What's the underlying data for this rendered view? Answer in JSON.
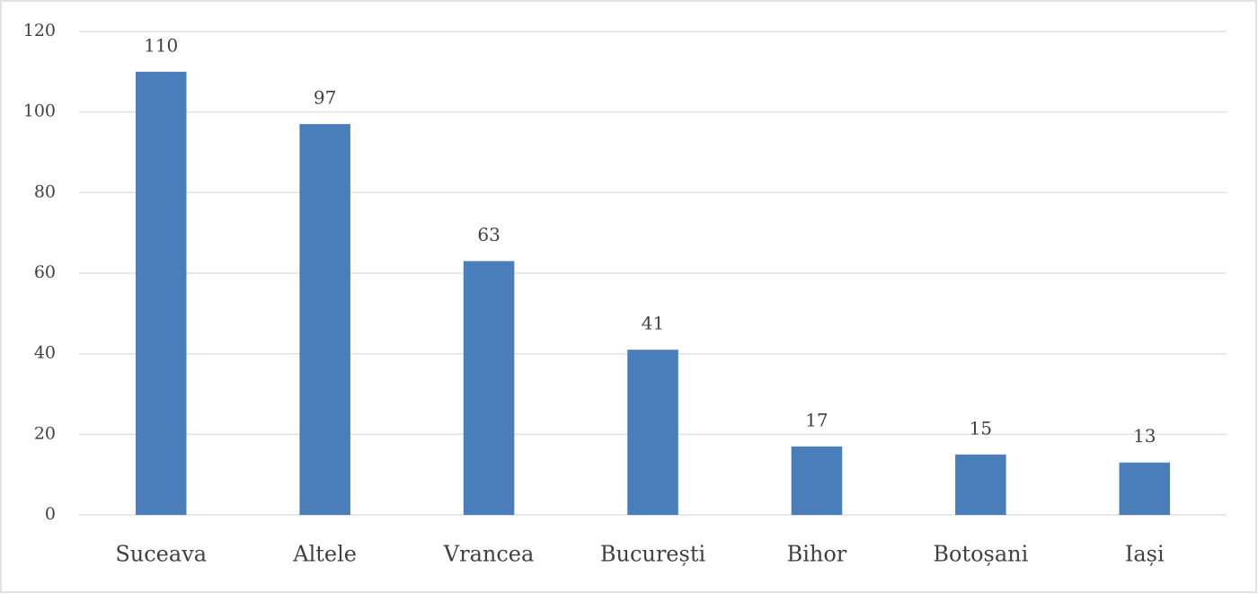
{
  "chart_data": {
    "type": "bar",
    "categories": [
      "Suceava",
      "Altele",
      "Vrancea",
      "București",
      "Bihor",
      "Botoșani",
      "Iași"
    ],
    "values": [
      110,
      97,
      63,
      41,
      17,
      15,
      13
    ],
    "color": "#4a7ebb",
    "ylim": [
      0,
      120
    ],
    "yticks": [
      0,
      20,
      40,
      60,
      80,
      100,
      120
    ],
    "grid": true
  }
}
